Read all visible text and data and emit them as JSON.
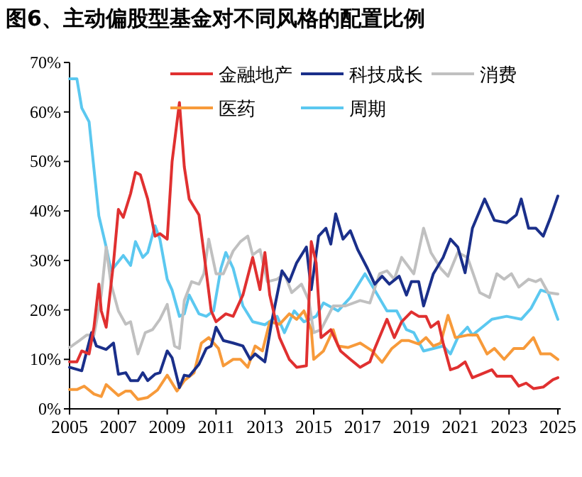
{
  "chart_data": {
    "type": "line",
    "title": "图6、主动偏股型基金对不同风格的配置比例",
    "legend": "top",
    "grid": false,
    "line_style": "solid",
    "xlim": [
      2005,
      2025
    ],
    "xticks": [
      2005,
      2007,
      2009,
      2011,
      2013,
      2015,
      2017,
      2019,
      2021,
      2023,
      2025
    ],
    "ylim": [
      0,
      70
    ],
    "yticks": [
      {
        "value": 0,
        "label": "0%"
      },
      {
        "value": 10,
        "label": "10%"
      },
      {
        "value": 20,
        "label": "20%"
      },
      {
        "value": 30,
        "label": "30%"
      },
      {
        "value": 40,
        "label": "40%"
      },
      {
        "value": 50,
        "label": "50%"
      },
      {
        "value": 60,
        "label": "60%"
      },
      {
        "value": 70,
        "label": "70%"
      }
    ],
    "series": [
      {
        "name": "金融地产",
        "color": "#e03030",
        "x": [
          2005,
          2005.3,
          2005.5,
          2005.8,
          2006.0,
          2006.2,
          2006.3,
          2006.5,
          2006.8,
          2007.0,
          2007.2,
          2007.5,
          2007.7,
          2007.9,
          2008.2,
          2008.5,
          2008.7,
          2009.0,
          2009.2,
          2009.5,
          2009.7,
          2009.9,
          2010.3,
          2010.5,
          2010.8,
          2011.0,
          2011.4,
          2011.7,
          2012.1,
          2012.5,
          2012.8,
          2013.0,
          2013.2,
          2013.6,
          2014.0,
          2014.3,
          2014.7,
          2014.9,
          2015.1,
          2015.3,
          2015.7,
          2016.1,
          2016.5,
          2016.9,
          2017.3,
          2017.5,
          2018.0,
          2018.3,
          2018.6,
          2019.0,
          2019.3,
          2019.6,
          2019.8,
          2020.1,
          2020.3,
          2020.6,
          2020.9,
          2021.2,
          2021.5,
          2022.0,
          2022.3,
          2022.5,
          2023.1,
          2023.4,
          2023.7,
          2024.0,
          2024.4,
          2024.8,
          2025.0
        ],
        "values": [
          9.5,
          9.5,
          11.7,
          11.1,
          16.5,
          25.2,
          19.8,
          16.5,
          29.5,
          40.3,
          38.7,
          43.5,
          47.8,
          47.3,
          42.4,
          34.9,
          35.4,
          34.3,
          50,
          61.9,
          48.9,
          42.4,
          39.2,
          31.6,
          19.8,
          17.6,
          19.2,
          18.7,
          23,
          30.6,
          24.1,
          31.6,
          23,
          14.4,
          10,
          8.4,
          8.7,
          33.8,
          29.5,
          14.4,
          16,
          11.7,
          10,
          8.4,
          9.5,
          12.2,
          18.1,
          14.4,
          17.6,
          19.6,
          18.7,
          18.7,
          16.5,
          17.6,
          13.3,
          7.9,
          8.4,
          9.5,
          6.3,
          7.3,
          7.9,
          6.6,
          6.6,
          4.6,
          5.2,
          4.1,
          4.4,
          5.9,
          6.3
        ]
      },
      {
        "name": "科技成长",
        "color": "#1a2f8a",
        "x": [
          2005,
          2005.5,
          2005.9,
          2006.1,
          2006.5,
          2006.8,
          2007.0,
          2007.3,
          2007.5,
          2007.8,
          2008.0,
          2008.2,
          2008.5,
          2008.7,
          2009.0,
          2009.2,
          2009.5,
          2009.7,
          2009.9,
          2010.3,
          2010.6,
          2010.8,
          2011.0,
          2011.3,
          2011.7,
          2012.1,
          2012.4,
          2012.6,
          2013.0,
          2013.3,
          2013.7,
          2014.0,
          2014.3,
          2014.7,
          2014.9,
          2015.2,
          2015.5,
          2015.7,
          2015.9,
          2016.2,
          2016.5,
          2016.8,
          2017.2,
          2017.5,
          2017.8,
          2018.1,
          2018.5,
          2018.8,
          2019.0,
          2019.3,
          2019.5,
          2019.9,
          2020.3,
          2020.6,
          2020.9,
          2021.2,
          2021.5,
          2022.0,
          2022.4,
          2022.9,
          2023.3,
          2023.5,
          2023.8,
          2024.1,
          2024.4,
          2024.7,
          2025.0
        ],
        "values": [
          8.4,
          7.7,
          15.4,
          12.7,
          12,
          13.3,
          7,
          7.3,
          5.7,
          5.7,
          7.3,
          5.7,
          7,
          7.3,
          11.7,
          10.3,
          4.3,
          6.8,
          6.6,
          9,
          12.2,
          12.7,
          16.5,
          13.8,
          13.3,
          12.7,
          10,
          11.1,
          9.5,
          18.1,
          27.9,
          25.7,
          29.5,
          32.7,
          24.1,
          34.9,
          36.5,
          33.3,
          39.4,
          34.3,
          36,
          32.2,
          28.4,
          25.2,
          26.8,
          25.2,
          26.8,
          23,
          25.7,
          25.7,
          20.8,
          27.3,
          30.6,
          34.3,
          32.7,
          27.5,
          36.5,
          42.4,
          38.1,
          37.6,
          39.2,
          42.4,
          36.5,
          36.5,
          34.9,
          38.7,
          43
        ]
      },
      {
        "name": "消费",
        "color": "#c0c0c0",
        "x": [
          2005,
          2005.4,
          2005.7,
          2006.0,
          2006.3,
          2006.5,
          2006.7,
          2007.0,
          2007.3,
          2007.5,
          2007.8,
          2008.1,
          2008.4,
          2008.7,
          2009.0,
          2009.3,
          2009.5,
          2009.7,
          2010.0,
          2010.3,
          2010.5,
          2010.7,
          2011.0,
          2011.3,
          2011.7,
          2012.0,
          2012.3,
          2012.5,
          2012.8,
          2013.1,
          2013.5,
          2013.8,
          2014.1,
          2014.5,
          2014.8,
          2015.0,
          2015.3,
          2015.8,
          2016.3,
          2016.9,
          2017.3,
          2017.7,
          2018.0,
          2018.3,
          2018.6,
          2019.1,
          2019.5,
          2019.8,
          2020.2,
          2020.5,
          2020.9,
          2021.3,
          2021.8,
          2022.2,
          2022.5,
          2022.8,
          2023.1,
          2023.4,
          2023.8,
          2024.1,
          2024.3,
          2024.6,
          2025.0
        ],
        "values": [
          12.4,
          13.8,
          14.9,
          14.9,
          23,
          32.7,
          25.2,
          19.8,
          17.1,
          17.6,
          11.1,
          15.4,
          16,
          18.1,
          21.1,
          12.7,
          12.2,
          21.9,
          25.7,
          25.2,
          27.3,
          34.3,
          27.3,
          27.3,
          31.9,
          33.8,
          34.9,
          31.1,
          32.2,
          25.7,
          26.2,
          27.3,
          23.5,
          25.2,
          21.9,
          15.4,
          16,
          20.8,
          20.8,
          21.9,
          21.4,
          27.3,
          27.9,
          26.2,
          30.6,
          27.3,
          36.5,
          31.6,
          28.4,
          26.8,
          31.6,
          30.6,
          23.5,
          22.5,
          27.3,
          26.2,
          27.3,
          24.6,
          26.2,
          25.7,
          26.2,
          23.5,
          23.2
        ]
      },
      {
        "name": "医药",
        "color": "#f79a3a",
        "x": [
          2005,
          2005.3,
          2005.6,
          2006.0,
          2006.3,
          2006.5,
          2007.0,
          2007.3,
          2007.5,
          2007.8,
          2008.2,
          2008.6,
          2009.0,
          2009.4,
          2009.7,
          2010.1,
          2010.4,
          2010.7,
          2011.1,
          2011.3,
          2011.7,
          2012.0,
          2012.3,
          2012.6,
          2012.9,
          2013.2,
          2013.6,
          2014.0,
          2014.3,
          2014.6,
          2014.9,
          2015.0,
          2015.4,
          2015.8,
          2016.0,
          2016.4,
          2016.9,
          2017.4,
          2017.8,
          2018.2,
          2018.6,
          2018.9,
          2019.3,
          2019.6,
          2019.9,
          2020.2,
          2020.5,
          2020.8,
          2021.3,
          2021.7,
          2022.1,
          2022.4,
          2022.8,
          2023.2,
          2023.6,
          2024.0,
          2024.3,
          2024.7,
          2025.0
        ],
        "values": [
          3.9,
          3.9,
          4.6,
          3,
          2.5,
          4.9,
          2.7,
          3.6,
          3.6,
          1.9,
          2.3,
          3.8,
          6.8,
          3.6,
          5.7,
          7.3,
          13.3,
          14.4,
          12.2,
          8.7,
          10,
          10,
          8.4,
          12.7,
          11.7,
          17.6,
          17.1,
          19.2,
          18.1,
          19.8,
          16,
          10,
          11.7,
          16,
          12.7,
          12.4,
          13.3,
          11.7,
          9.4,
          12.2,
          13.8,
          13.8,
          13.1,
          14.4,
          12.7,
          13.3,
          18.9,
          14.4,
          14.9,
          14.9,
          11.1,
          12.2,
          10,
          12.2,
          12.2,
          14.4,
          11.1,
          11.1,
          10
        ]
      },
      {
        "name": "周期",
        "color": "#5bc8f0",
        "x": [
          2005,
          2005.3,
          2005.5,
          2005.8,
          2006.2,
          2006.5,
          2006.7,
          2007.2,
          2007.5,
          2007.7,
          2008.0,
          2008.2,
          2008.5,
          2008.7,
          2009.0,
          2009.2,
          2009.5,
          2009.7,
          2009.9,
          2010.3,
          2010.6,
          2010.9,
          2011.2,
          2011.4,
          2011.7,
          2012.1,
          2012.5,
          2013.0,
          2013.5,
          2013.8,
          2014.2,
          2014.6,
          2015.1,
          2015.4,
          2016.0,
          2016.5,
          2017.1,
          2017.5,
          2018.0,
          2018.4,
          2018.8,
          2019.1,
          2019.5,
          2019.9,
          2020.3,
          2020.6,
          2020.9,
          2021.3,
          2021.5,
          2021.9,
          2022.3,
          2022.9,
          2023.5,
          2023.9,
          2024.3,
          2024.6,
          2025.0
        ],
        "values": [
          66.7,
          66.7,
          60.8,
          58,
          39,
          32.7,
          27.9,
          31,
          29,
          33.8,
          30.6,
          31.6,
          37,
          34.3,
          26.2,
          24,
          18.7,
          19.2,
          23,
          19.2,
          18.7,
          19.8,
          28.4,
          31.6,
          28.4,
          20.8,
          17.6,
          17,
          18.7,
          15.4,
          19.8,
          17.6,
          18.7,
          21.4,
          19.8,
          22.5,
          27.3,
          24,
          19.8,
          19.8,
          16,
          15.4,
          11.7,
          12.2,
          12.7,
          11.1,
          14.4,
          16.5,
          14.9,
          16.5,
          18.1,
          18.7,
          18.1,
          20.3,
          24,
          23.5,
          18.1
        ]
      }
    ]
  }
}
